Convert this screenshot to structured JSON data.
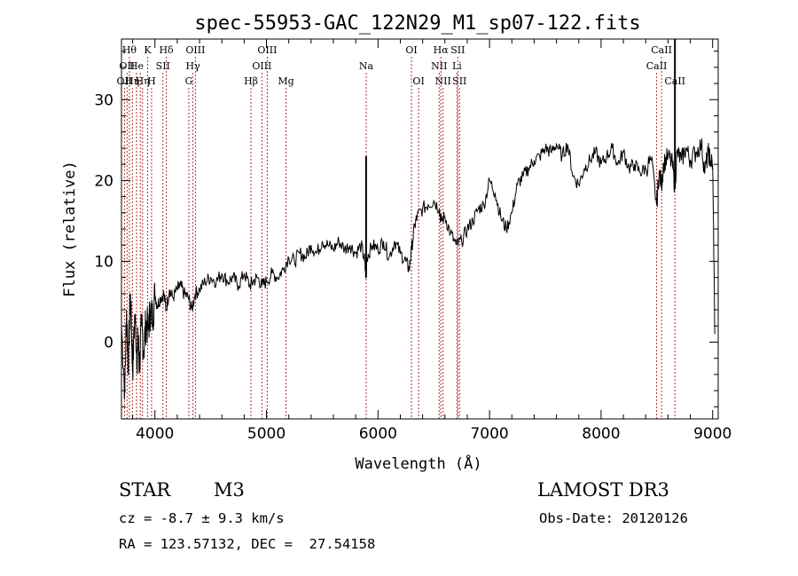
{
  "chart_data": {
    "type": "line",
    "title": "spec-55953-GAC_122N29_M1_sp07-122.fits",
    "xlabel": "Wavelength (Å)",
    "ylabel": "Flux (relative)",
    "xlim": [
      3700,
      9050
    ],
    "ylim": [
      -9.5,
      37.5
    ],
    "xticks": [
      4000,
      5000,
      6000,
      7000,
      8000,
      9000
    ],
    "yticks": [
      0,
      10,
      20,
      30
    ],
    "grid": false,
    "line_color": "#000000",
    "marker_color": "#b03030",
    "series": [
      {
        "points": [
          [
            3700,
            2.0
          ],
          [
            3730,
            -6.0
          ],
          [
            3745,
            4.0
          ],
          [
            3760,
            -3.0
          ],
          [
            3780,
            6.0
          ],
          [
            3790,
            1.5
          ],
          [
            3800,
            -3.5
          ],
          [
            3820,
            3.5
          ],
          [
            3840,
            -2.0
          ],
          [
            3850,
            0.5
          ],
          [
            3860,
            -3.0
          ],
          [
            3880,
            2.0
          ],
          [
            3900,
            -1.0
          ],
          [
            3920,
            2.5
          ],
          [
            3940,
            1.5
          ],
          [
            3960,
            4.0
          ],
          [
            3980,
            3.0
          ],
          [
            4000,
            6.0
          ],
          [
            4020,
            4.5
          ],
          [
            4050,
            5.5
          ],
          [
            4080,
            6.0
          ],
          [
            4100,
            4.0
          ],
          [
            4130,
            6.5
          ],
          [
            4160,
            5.5
          ],
          [
            4200,
            6.5
          ],
          [
            4230,
            7.0
          ],
          [
            4260,
            6.0
          ],
          [
            4300,
            5.5
          ],
          [
            4330,
            4.0
          ],
          [
            4360,
            6.0
          ],
          [
            4400,
            6.5
          ],
          [
            4450,
            7.5
          ],
          [
            4500,
            8.0
          ],
          [
            4550,
            7.5
          ],
          [
            4600,
            8.5
          ],
          [
            4650,
            7.5
          ],
          [
            4700,
            8.0
          ],
          [
            4750,
            7.0
          ],
          [
            4800,
            8.5
          ],
          [
            4850,
            7.0
          ],
          [
            4880,
            7.5
          ],
          [
            4920,
            8.0
          ],
          [
            4960,
            7.0
          ],
          [
            5000,
            7.5
          ],
          [
            5050,
            8.5
          ],
          [
            5100,
            8.0
          ],
          [
            5150,
            9.0
          ],
          [
            5200,
            10.5
          ],
          [
            5250,
            10.0
          ],
          [
            5300,
            11.0
          ],
          [
            5350,
            10.5
          ],
          [
            5400,
            12.0
          ],
          [
            5450,
            11.0
          ],
          [
            5500,
            12.5
          ],
          [
            5550,
            12.0
          ],
          [
            5600,
            11.5
          ],
          [
            5650,
            12.5
          ],
          [
            5700,
            11.5
          ],
          [
            5750,
            12.0
          ],
          [
            5800,
            11.0
          ],
          [
            5850,
            12.0
          ],
          [
            5880,
            10.0
          ],
          [
            5893,
            8.0
          ],
          [
            5900,
            10.5
          ],
          [
            5950,
            12.0
          ],
          [
            6000,
            11.5
          ],
          [
            6050,
            12.5
          ],
          [
            6100,
            10.5
          ],
          [
            6150,
            12.5
          ],
          [
            6200,
            11.0
          ],
          [
            6250,
            10.0
          ],
          [
            6280,
            9.0
          ],
          [
            6300,
            11.5
          ],
          [
            6330,
            14.5
          ],
          [
            6350,
            15.5
          ],
          [
            6400,
            16.5
          ],
          [
            6450,
            17.0
          ],
          [
            6500,
            17.5
          ],
          [
            6550,
            16.5
          ],
          [
            6563,
            15.0
          ],
          [
            6600,
            15.5
          ],
          [
            6650,
            13.5
          ],
          [
            6700,
            12.0
          ],
          [
            6750,
            12.5
          ],
          [
            6800,
            14.0
          ],
          [
            6850,
            15.0
          ],
          [
            6900,
            16.5
          ],
          [
            6950,
            17.0
          ],
          [
            7000,
            20.0
          ],
          [
            7050,
            18.5
          ],
          [
            7100,
            15.5
          ],
          [
            7150,
            14.0
          ],
          [
            7200,
            16.0
          ],
          [
            7250,
            19.5
          ],
          [
            7300,
            20.5
          ],
          [
            7350,
            21.5
          ],
          [
            7400,
            22.5
          ],
          [
            7450,
            23.0
          ],
          [
            7500,
            24.0
          ],
          [
            7550,
            23.5
          ],
          [
            7600,
            24.5
          ],
          [
            7650,
            23.0
          ],
          [
            7700,
            24.5
          ],
          [
            7750,
            20.5
          ],
          [
            7800,
            19.5
          ],
          [
            7850,
            21.5
          ],
          [
            7900,
            22.5
          ],
          [
            7950,
            23.5
          ],
          [
            8000,
            22.0
          ],
          [
            8050,
            23.0
          ],
          [
            8100,
            24.0
          ],
          [
            8150,
            22.0
          ],
          [
            8200,
            23.5
          ],
          [
            8250,
            21.5
          ],
          [
            8300,
            22.0
          ],
          [
            8350,
            21.0
          ],
          [
            8400,
            21.5
          ],
          [
            8450,
            22.5
          ],
          [
            8498,
            17.0
          ],
          [
            8520,
            21.0
          ],
          [
            8542,
            19.5
          ],
          [
            8560,
            22.0
          ],
          [
            8600,
            23.0
          ],
          [
            8640,
            22.0
          ],
          [
            8662,
            19.0
          ],
          [
            8680,
            23.5
          ],
          [
            8720,
            22.5
          ],
          [
            8760,
            24.0
          ],
          [
            8800,
            22.5
          ],
          [
            8850,
            23.5
          ],
          [
            8900,
            24.5
          ],
          [
            8930,
            21.0
          ],
          [
            8960,
            23.5
          ],
          [
            8980,
            22.5
          ],
          [
            9000,
            22.0
          ],
          [
            9020,
            1.0
          ]
        ]
      }
    ],
    "spikes": [
      {
        "x": 5893,
        "y": 23.0
      },
      {
        "x": 8662,
        "y": 37.5
      }
    ],
    "lines": [
      {
        "x": 3727,
        "label": "OII",
        "row": 2
      },
      {
        "x": 3750,
        "label": "OII",
        "row": 1
      },
      {
        "x": 3771,
        "label": "Hθ",
        "row": 0
      },
      {
        "x": 3798,
        "label": "Hη",
        "row": 2
      },
      {
        "x": 3835,
        "label": "He",
        "row": 1
      },
      {
        "x": 3869,
        "label": "",
        "row": 1
      },
      {
        "x": 3889,
        "label": "Hη",
        "row": 2
      },
      {
        "x": 3934,
        "label": "K",
        "row": 0
      },
      {
        "x": 3970,
        "label": "H",
        "row": 2
      },
      {
        "x": 4072,
        "label": "SII",
        "row": 1
      },
      {
        "x": 4102,
        "label": "Hδ",
        "row": 0
      },
      {
        "x": 4304,
        "label": "G",
        "row": 2
      },
      {
        "x": 4341,
        "label": "Hγ",
        "row": 1
      },
      {
        "x": 4363,
        "label": "OIII",
        "row": 0
      },
      {
        "x": 4861,
        "label": "Hβ",
        "row": 2
      },
      {
        "x": 4959,
        "label": "OIII",
        "row": 1
      },
      {
        "x": 5007,
        "label": "OIII",
        "row": 0
      },
      {
        "x": 5175,
        "label": "Mg",
        "row": 2
      },
      {
        "x": 5894,
        "label": "Na",
        "row": 1
      },
      {
        "x": 6300,
        "label": "OI",
        "row": 0
      },
      {
        "x": 6364,
        "label": "OI",
        "row": 2
      },
      {
        "x": 6548,
        "label": "NII",
        "row": 1
      },
      {
        "x": 6563,
        "label": "Hα",
        "row": 0
      },
      {
        "x": 6583,
        "label": "NII",
        "row": 2
      },
      {
        "x": 6708,
        "label": "Li",
        "row": 1
      },
      {
        "x": 6716,
        "label": "SII",
        "row": 0
      },
      {
        "x": 6731,
        "label": "SII",
        "row": 2
      },
      {
        "x": 8498,
        "label": "CaII",
        "row": 1
      },
      {
        "x": 8542,
        "label": "CaII",
        "row": 0
      },
      {
        "x": 8662,
        "label": "CaII",
        "row": 2
      }
    ]
  },
  "info": {
    "class_label": "STAR",
    "subclass_label": "M3",
    "survey_label": "LAMOST DR3",
    "cz_text": "cz = -8.7 ± 9.3 km/s",
    "obs_date_text": "Obs-Date: 20120126",
    "coords_text": "RA = 123.57132, DEC =  27.54158"
  }
}
